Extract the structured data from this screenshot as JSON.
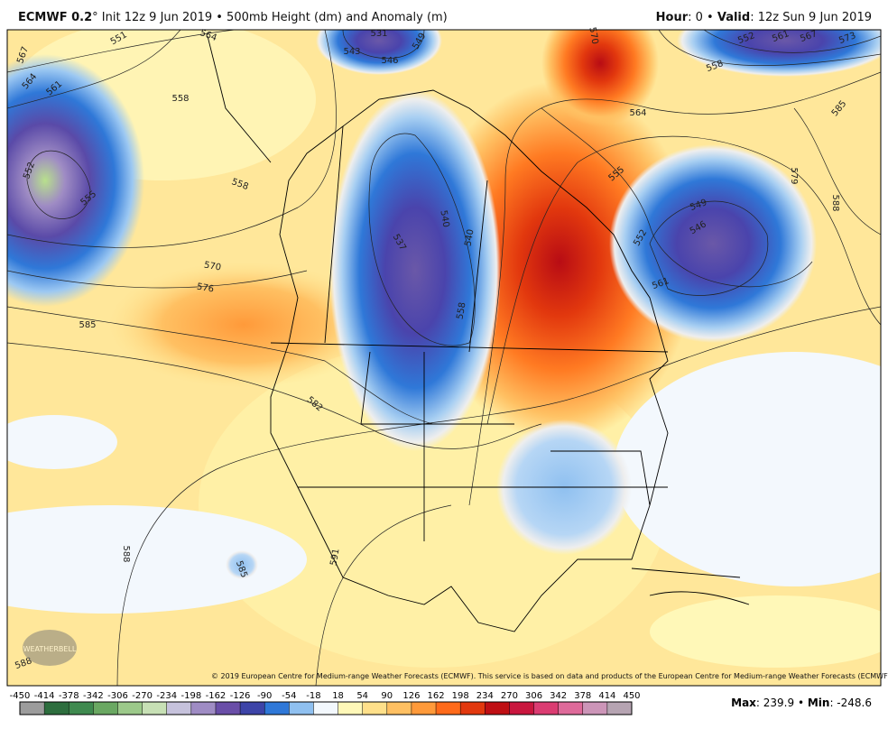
{
  "header": {
    "left": [
      {
        "text": "ECMWF 0.2",
        "bold": true
      },
      {
        "text": "° Init 12z 9 Jun 2019 • 500mb Height (dm) and Anomaly (m)",
        "bold": false
      }
    ],
    "right": [
      {
        "text": "Hour",
        "bold": true
      },
      {
        "text": ": 0 • ",
        "bold": false
      },
      {
        "text": "Valid",
        "bold": true
      },
      {
        "text": ": 12z Sun 9 Jun 2019",
        "bold": false
      }
    ]
  },
  "map": {
    "contour_labels": [
      567,
      564,
      561,
      552,
      555,
      558,
      558,
      570,
      576,
      585,
      551,
      564,
      531,
      543,
      546,
      549,
      570,
      564,
      555,
      552,
      558,
      561,
      567,
      573,
      585,
      579,
      588,
      540,
      537,
      540,
      546,
      549,
      552,
      561,
      558,
      582,
      588,
      585,
      591,
      588
    ],
    "copyright": "© 2019 European Centre for Medium-range Weather Forecasts (ECMWF). This service is based on data and products of the European Centre for Medium-range Weather Forecasts (ECMWF).",
    "logo": "WEATHERBELL"
  },
  "colorbar": {
    "ticks": [
      -450,
      -414,
      -378,
      -342,
      -306,
      -270,
      -234,
      -198,
      -162,
      -126,
      -90,
      -54,
      -18,
      18,
      54,
      90,
      126,
      162,
      198,
      234,
      270,
      306,
      342,
      378,
      414,
      450
    ],
    "colors": [
      "#9c9c9c",
      "#2d6e3e",
      "#3f8a4f",
      "#6aa862",
      "#9cc98a",
      "#c7e0b5",
      "#c6c2dc",
      "#9f8cc4",
      "#6a4ea8",
      "#3d44a8",
      "#2f78d8",
      "#8fc0f0",
      "#f3f8fd",
      "#fff8b8",
      "#ffe08a",
      "#ffc062",
      "#ff9a3a",
      "#ff6a1a",
      "#e2380e",
      "#bf0f14",
      "#c9163e",
      "#db3c72",
      "#de6a9a",
      "#cc95b8",
      "#b6a4b2"
    ]
  },
  "footer": {
    "stats": [
      {
        "text": "Max",
        "bold": true
      },
      {
        "text": ": 239.9 • ",
        "bold": false
      },
      {
        "text": "Min",
        "bold": true
      },
      {
        "text": ": -248.6",
        "bold": false
      }
    ]
  }
}
